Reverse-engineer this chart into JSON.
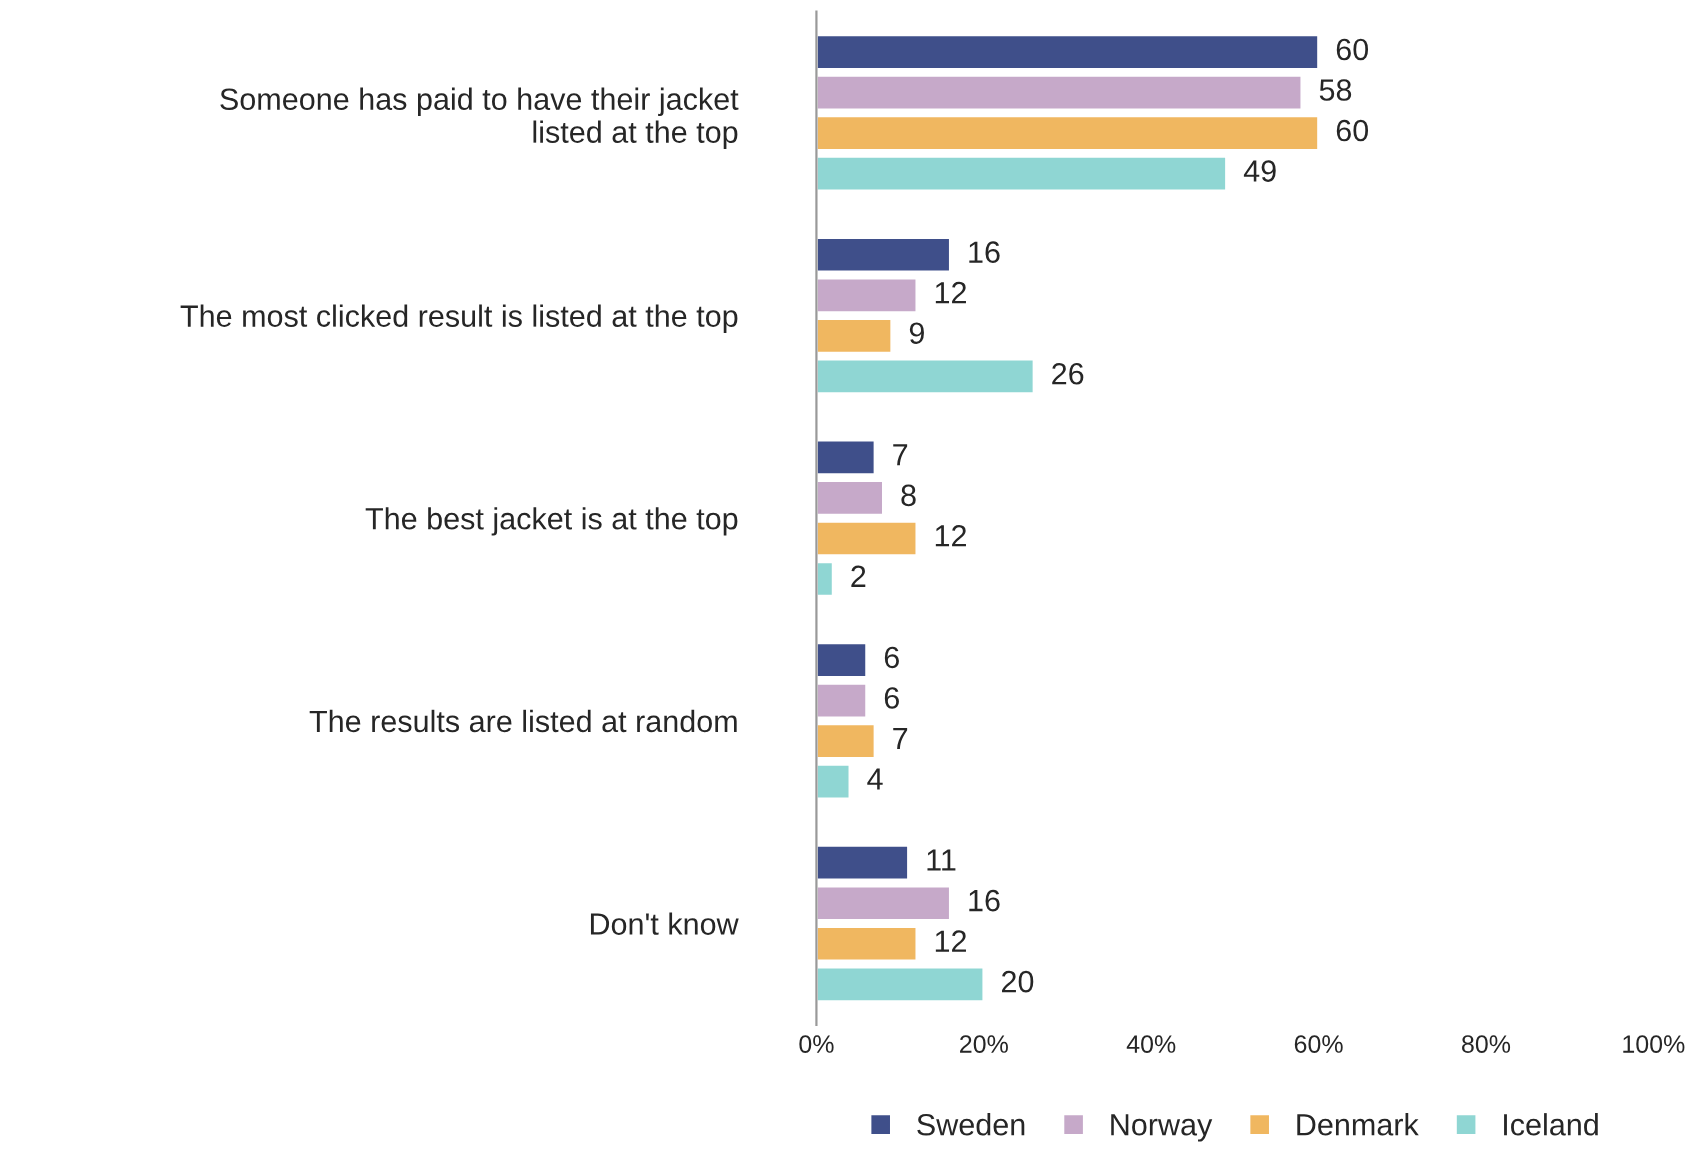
{
  "chart_data": {
    "type": "bar",
    "orientation": "horizontal",
    "categories": [
      "Someone has paid to have their jacket\nlisted at the top",
      "The most clicked result is listed at the top",
      "The best jacket is at the top",
      "The results are listed at random",
      "Don't know"
    ],
    "series": [
      {
        "name": "Sweden",
        "color": "#3f4f8a",
        "values": [
          60,
          16,
          7,
          6,
          11
        ]
      },
      {
        "name": "Norway",
        "color": "#c6a9c9",
        "values": [
          58,
          12,
          8,
          6,
          16
        ]
      },
      {
        "name": "Denmark",
        "color": "#f0b760",
        "values": [
          60,
          9,
          12,
          7,
          12
        ]
      },
      {
        "name": "Iceland",
        "color": "#8fd6d3",
        "values": [
          49,
          26,
          2,
          4,
          20
        ]
      }
    ],
    "xlim": [
      0,
      100
    ],
    "xticks": [
      {
        "value": 0,
        "label": "0%"
      },
      {
        "value": 20,
        "label": "20%"
      },
      {
        "value": 40,
        "label": "40%"
      },
      {
        "value": 60,
        "label": "60%"
      },
      {
        "value": 80,
        "label": "80%"
      },
      {
        "value": 100,
        "label": "100%"
      }
    ],
    "data_labels": true,
    "grid": false,
    "legend": "bottom"
  }
}
